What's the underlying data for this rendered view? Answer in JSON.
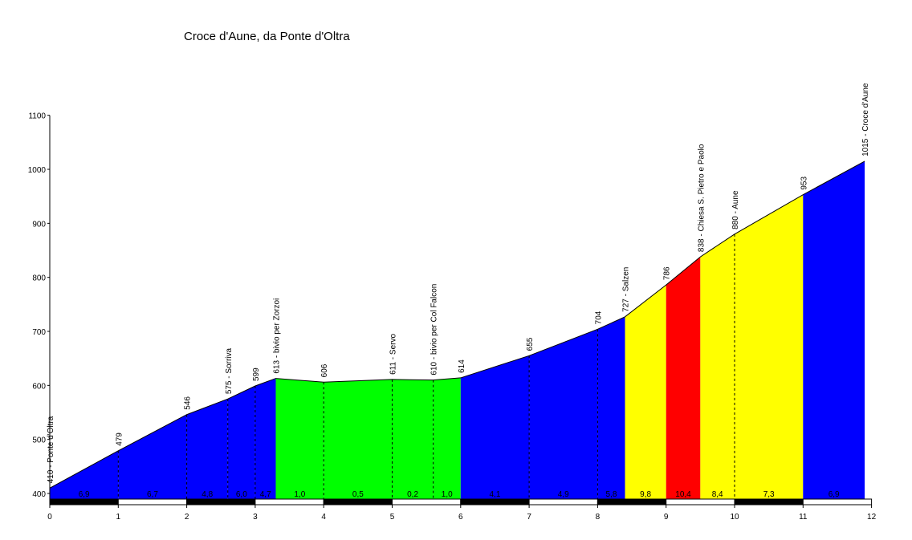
{
  "chart_data": {
    "type": "area",
    "title": "Croce d'Aune, da Ponte d'Oltra",
    "xlabel": "",
    "ylabel": "",
    "xlim": [
      0,
      12
    ],
    "ylim": [
      390,
      1100
    ],
    "x_ticks": [
      0,
      1,
      2,
      3,
      4,
      5,
      6,
      7,
      8,
      9,
      10,
      11,
      12
    ],
    "y_ticks": [
      400,
      500,
      600,
      700,
      800,
      900,
      1000,
      1100
    ],
    "profile": [
      {
        "km": 0,
        "alt": 410,
        "label": "410 - Ponte d'Oltra",
        "line": false
      },
      {
        "km": 1,
        "alt": 479,
        "label": "479",
        "line": true
      },
      {
        "km": 2,
        "alt": 546,
        "label": "546",
        "line": true
      },
      {
        "km": 2.6,
        "alt": 575,
        "label": "575 - Sorriva",
        "line": true
      },
      {
        "km": 3,
        "alt": 599,
        "label": "599",
        "line": true
      },
      {
        "km": 3.3,
        "alt": 613,
        "label": "613 - bivio per Zorzoi",
        "line": false
      },
      {
        "km": 4,
        "alt": 606,
        "label": "606",
        "line": true
      },
      {
        "km": 5,
        "alt": 611,
        "label": "611 - Servo",
        "line": true
      },
      {
        "km": 5.6,
        "alt": 610,
        "label": "610 - bivio per Col Falcon",
        "line": true
      },
      {
        "km": 6,
        "alt": 614,
        "label": "614",
        "line": false
      },
      {
        "km": 7,
        "alt": 655,
        "label": "655",
        "line": true
      },
      {
        "km": 8,
        "alt": 704,
        "label": "704",
        "line": true
      },
      {
        "km": 8.4,
        "alt": 727,
        "label": "727 - Salzen",
        "line": false
      },
      {
        "km": 9,
        "alt": 786,
        "label": "786",
        "line": false
      },
      {
        "km": 9.5,
        "alt": 838,
        "label": "838 - Chiesa S. Pietro e Paolo",
        "line": false
      },
      {
        "km": 10,
        "alt": 880,
        "label": "880 - Aune",
        "line": true
      },
      {
        "km": 11,
        "alt": 953,
        "label": "953",
        "line": false
      },
      {
        "km": 11.9,
        "alt": 1015,
        "label": "1015 - Croce d'Aune",
        "line": false
      }
    ],
    "gradients": [
      "6,9",
      "6,7",
      "4,8",
      "6,0",
      "4,7",
      "1,0",
      "0,5",
      "0,2",
      "1,0",
      "4,1",
      "4,9",
      "5,8",
      "9,8",
      "10,4",
      "8,4",
      "7,3",
      "6,9"
    ],
    "gradient_colors": [
      "#0000ff",
      "#0000ff",
      "#0000ff",
      "#0000ff",
      "#0000ff",
      "#00ff00",
      "#00ff00",
      "#00ff00",
      "#00ff00",
      "#0000ff",
      "#0000ff",
      "#0000ff",
      "#ffff00",
      "#ff0000",
      "#ffff00",
      "#ffff00",
      "#0000ff"
    ]
  }
}
